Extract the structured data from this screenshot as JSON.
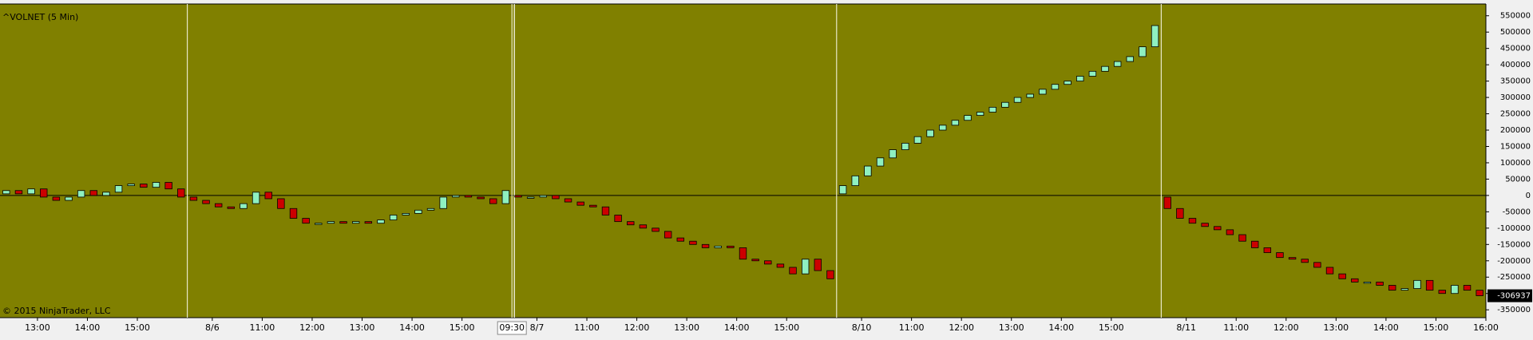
{
  "chart_data": {
    "type": "candlestick",
    "title": "^VOLNET (5 Min)",
    "copyright": "© 2015 NinjaTrader, LLC",
    "background": "#808000",
    "up_color": "#8ff0c0",
    "down_color": "#cc0000",
    "xlim": [
      0,
      119
    ],
    "ylim": [
      -374000,
      586000
    ],
    "yticks": [
      550000,
      500000,
      450000,
      400000,
      350000,
      300000,
      250000,
      200000,
      150000,
      100000,
      50000,
      0,
      -50000,
      -100000,
      -150000,
      -200000,
      -250000,
      -300000,
      -350000
    ],
    "xticks": [
      {
        "value": 3,
        "label": "13:00"
      },
      {
        "value": 7,
        "label": "14:00"
      },
      {
        "value": 11,
        "label": "15:00"
      },
      {
        "value": 17,
        "label": "8/6"
      },
      {
        "value": 21,
        "label": "11:00"
      },
      {
        "value": 25,
        "label": "12:00"
      },
      {
        "value": 29,
        "label": "13:00"
      },
      {
        "value": 33,
        "label": "14:00"
      },
      {
        "value": 37,
        "label": "15:00"
      },
      {
        "value": 43,
        "label": "8/7"
      },
      {
        "value": 47,
        "label": "11:00"
      },
      {
        "value": 51,
        "label": "12:00"
      },
      {
        "value": 55,
        "label": "13:00"
      },
      {
        "value": 59,
        "label": "14:00"
      },
      {
        "value": 63,
        "label": "15:00"
      },
      {
        "value": 69,
        "label": "8/10"
      },
      {
        "value": 73,
        "label": "11:00"
      },
      {
        "value": 77,
        "label": "12:00"
      },
      {
        "value": 81,
        "label": "13:00"
      },
      {
        "value": 85,
        "label": "14:00"
      },
      {
        "value": 89,
        "label": "15:00"
      },
      {
        "value": 95,
        "label": "8/11"
      },
      {
        "value": 99,
        "label": "11:00"
      },
      {
        "value": 103,
        "label": "12:00"
      },
      {
        "value": 107,
        "label": "13:00"
      },
      {
        "value": 111,
        "label": "14:00"
      },
      {
        "value": 115,
        "label": "15:00"
      },
      {
        "value": 119,
        "label": "16:00"
      }
    ],
    "session_breaks": [
      15,
      41,
      67,
      93
    ],
    "cursor": {
      "value": 41,
      "label": "09:30"
    },
    "open": [
      5000,
      15000,
      5000,
      20000,
      -5000,
      -15000,
      -5000,
      15000,
      0,
      10000,
      30000,
      35000,
      25000,
      40000,
      20000,
      -5000,
      -15000,
      -25000,
      -35000,
      -40000,
      -25000,
      10000,
      -10000,
      -40000,
      -70000,
      -85000,
      -85000,
      -80000,
      -85000,
      -80000,
      -85000,
      -75000,
      -60000,
      -55000,
      -45000,
      -40000,
      -5000,
      0,
      -5000,
      -10000,
      -25000,
      0,
      -5000,
      -5000,
      0,
      -10000,
      -20000,
      -30000,
      -35000,
      -60000,
      -80000,
      -90000,
      -100000,
      -110000,
      -130000,
      -140000,
      -150000,
      -160000,
      -155000,
      -160000,
      -195000,
      -200000,
      -210000,
      -220000,
      -240000,
      -195000,
      -230000,
      5000,
      30000,
      60000,
      90000,
      115000,
      140000,
      160000,
      180000,
      200000,
      215000,
      230000,
      245000,
      255000,
      270000,
      285000,
      300000,
      310000,
      325000,
      340000,
      350000,
      365000,
      380000,
      395000,
      410000,
      425000,
      455000,
      -5000,
      -40000,
      -70000,
      -85000,
      -95000,
      -105000,
      -120000,
      -140000,
      -160000,
      -175000,
      -190000,
      -195000,
      -205000,
      -220000,
      -240000,
      -255000,
      -265000,
      -265000,
      -275000,
      -290000,
      -285000,
      -260000,
      -290000,
      -300000,
      -275000,
      -290000
    ],
    "close": [
      15000,
      5000,
      20000,
      -5000,
      -15000,
      -5000,
      15000,
      0,
      10000,
      30000,
      35000,
      25000,
      40000,
      20000,
      -5000,
      -15000,
      -25000,
      -35000,
      -40000,
      -25000,
      10000,
      -10000,
      -40000,
      -70000,
      -85000,
      -85000,
      -80000,
      -85000,
      -80000,
      -85000,
      -75000,
      -60000,
      -55000,
      -45000,
      -40000,
      -5000,
      0,
      -5000,
      -10000,
      -25000,
      15000,
      -5000,
      -5000,
      0,
      -10000,
      -20000,
      -30000,
      -35000,
      -60000,
      -80000,
      -90000,
      -100000,
      -110000,
      -130000,
      -140000,
      -150000,
      -160000,
      -155000,
      -160000,
      -195000,
      -200000,
      -210000,
      -220000,
      -240000,
      -195000,
      -230000,
      -255000,
      30000,
      60000,
      90000,
      115000,
      140000,
      160000,
      180000,
      200000,
      215000,
      230000,
      245000,
      255000,
      270000,
      285000,
      300000,
      310000,
      325000,
      340000,
      350000,
      365000,
      380000,
      395000,
      410000,
      425000,
      455000,
      520000,
      -40000,
      -70000,
      -85000,
      -95000,
      -105000,
      -120000,
      -140000,
      -160000,
      -175000,
      -190000,
      -195000,
      -205000,
      -220000,
      -240000,
      -255000,
      -265000,
      -265000,
      -275000,
      -290000,
      -285000,
      -260000,
      -290000,
      -300000,
      -275000,
      -290000,
      -306937
    ]
  }
}
